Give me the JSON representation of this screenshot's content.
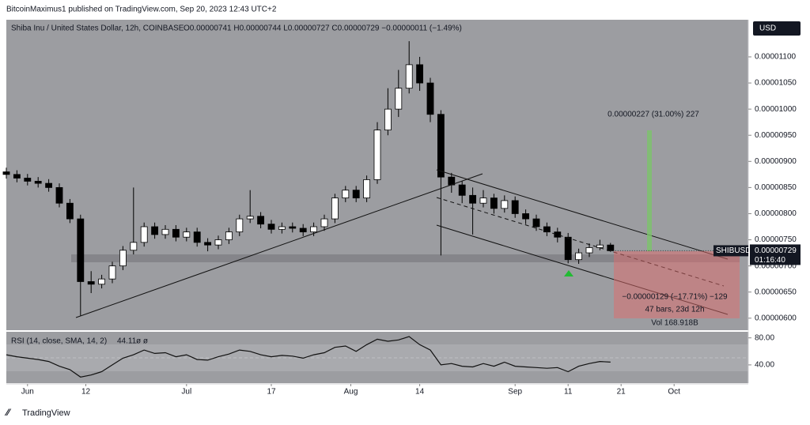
{
  "header": {
    "publisher": "BitcoinMaximus1 published on TradingView.com, Sep 20, 2023 12:43 UTC+2"
  },
  "chart_data": [
    {
      "type": "candlestick",
      "title": "Shiba Inu / United States Dollar, 12h, COINBASE",
      "ohlc_legend": "O0.00000741 H0.00000744 L0.00000727 C0.00000729 −0.00000011 (−1.49%)",
      "currency": "USD",
      "symbol": "SHIBUSD",
      "last_price": "0.00000729",
      "countdown": "01:16:40",
      "annotations": [
        "0.00000227 (31.00%) 227",
        "−0.00000129 (−17.71%) −129",
        "47 bars, 23d 12h",
        "Vol 168.918B"
      ],
      "up_color": "#ffffff",
      "down_color": "#000000",
      "xlim": [
        -4,
        136
      ],
      "xticks": [
        {
          "value": 0,
          "label": "Jun"
        },
        {
          "value": 11,
          "label": "12"
        },
        {
          "value": 30,
          "label": "Jul"
        },
        {
          "value": 46,
          "label": "17"
        },
        {
          "value": 61,
          "label": "Aug"
        },
        {
          "value": 74,
          "label": "14"
        },
        {
          "value": 92,
          "label": "Sep"
        },
        {
          "value": 102,
          "label": "11"
        },
        {
          "value": 112,
          "label": "21"
        },
        {
          "value": 122,
          "label": "Oct"
        }
      ],
      "ylim": [
        5.77e-06,
        1.171e-05
      ],
      "yticks": [
        {
          "value": 1.1e-05,
          "label": "0.00001100"
        },
        {
          "value": 1.05e-05,
          "label": "0.00001050"
        },
        {
          "value": 1e-05,
          "label": "0.00001000"
        },
        {
          "value": 9.5e-06,
          "label": "0.00000950"
        },
        {
          "value": 9e-06,
          "label": "0.00000900"
        },
        {
          "value": 8.5e-06,
          "label": "0.00000850"
        },
        {
          "value": 8e-06,
          "label": "0.00000800"
        },
        {
          "value": 7.5e-06,
          "label": "0.00000750"
        },
        {
          "value": 7e-06,
          "label": "0.00000700"
        },
        {
          "value": 6.5e-06,
          "label": "0.00000650"
        },
        {
          "value": 6e-06,
          "label": "0.00000600"
        }
      ],
      "x": [
        -4,
        -2,
        0,
        2,
        4,
        6,
        8,
        10,
        12,
        14,
        16,
        18,
        20,
        22,
        24,
        26,
        28,
        30,
        32,
        34,
        36,
        38,
        40,
        42,
        44,
        46,
        48,
        50,
        52,
        54,
        56,
        58,
        60,
        62,
        64,
        66,
        68,
        70,
        72,
        74,
        76,
        78,
        80,
        82,
        84,
        86,
        88,
        90,
        92,
        94,
        96,
        98,
        100,
        102,
        104,
        106,
        108,
        110
      ],
      "ohlc": [
        [
          8.8e-06,
          8.88e-06,
          8.67e-06,
          8.75e-06
        ],
        [
          8.75e-06,
          8.83e-06,
          8.6e-06,
          8.68e-06
        ],
        [
          8.68e-06,
          8.76e-06,
          8.54e-06,
          8.62e-06
        ],
        [
          8.62e-06,
          8.7e-06,
          8.5e-06,
          8.58e-06
        ],
        [
          8.58e-06,
          8.66e-06,
          8.42e-06,
          8.5e-06
        ],
        [
          8.5e-06,
          8.58e-06,
          8.12e-06,
          8.2e-06
        ],
        [
          8.2e-06,
          8.28e-06,
          7.82e-06,
          7.9e-06
        ],
        [
          7.9e-06,
          7.98e-06,
          6.05e-06,
          6.7e-06
        ],
        [
          6.7e-06,
          6.9e-06,
          6.48e-06,
          6.65e-06
        ],
        [
          6.65e-06,
          6.83e-06,
          6.57e-06,
          6.75e-06
        ],
        [
          6.75e-06,
          7.08e-06,
          6.67e-06,
          7e-06
        ],
        [
          7e-06,
          7.38e-06,
          6.92e-06,
          7.3e-06
        ],
        [
          7.3e-06,
          8.5e-06,
          7.22e-06,
          7.45e-06
        ],
        [
          7.45e-06,
          7.83e-06,
          7.37e-06,
          7.75e-06
        ],
        [
          7.75e-06,
          7.83e-06,
          7.52e-06,
          7.6e-06
        ],
        [
          7.6e-06,
          7.78e-06,
          7.52e-06,
          7.7e-06
        ],
        [
          7.7e-06,
          7.78e-06,
          7.47e-06,
          7.55e-06
        ],
        [
          7.55e-06,
          7.73e-06,
          7.47e-06,
          7.65e-06
        ],
        [
          7.65e-06,
          7.73e-06,
          7.37e-06,
          7.45e-06
        ],
        [
          7.45e-06,
          7.53e-06,
          7.28e-06,
          7.4e-06
        ],
        [
          7.4e-06,
          7.58e-06,
          7.32e-06,
          7.5e-06
        ],
        [
          7.5e-06,
          7.73e-06,
          7.42e-06,
          7.65e-06
        ],
        [
          7.65e-06,
          7.98e-06,
          7.57e-06,
          7.9e-06
        ],
        [
          7.9e-06,
          8.45e-06,
          7.82e-06,
          7.95e-06
        ],
        [
          7.95e-06,
          8.03e-06,
          7.72e-06,
          7.8e-06
        ],
        [
          7.8e-06,
          7.88e-06,
          7.62e-06,
          7.7e-06
        ],
        [
          7.7e-06,
          7.83e-06,
          7.62e-06,
          7.75e-06
        ],
        [
          7.75e-06,
          7.83e-06,
          7.64e-06,
          7.72e-06
        ],
        [
          7.72e-06,
          7.8e-06,
          7.57e-06,
          7.65e-06
        ],
        [
          7.65e-06,
          7.83e-06,
          7.57e-06,
          7.75e-06
        ],
        [
          7.75e-06,
          7.98e-06,
          7.67e-06,
          7.9e-06
        ],
        [
          7.9e-06,
          8.38e-06,
          7.82e-06,
          8.3e-06
        ],
        [
          8.3e-06,
          8.53e-06,
          8.22e-06,
          8.45e-06
        ],
        [
          8.45e-06,
          8.53e-06,
          8.22e-06,
          8.3e-06
        ],
        [
          8.3e-06,
          8.73e-06,
          8.22e-06,
          8.65e-06
        ],
        [
          8.65e-06,
          9.75e-06,
          8.57e-06,
          9.6e-06
        ],
        [
          9.6e-06,
          1.04e-05,
          9.5e-06,
          1e-05
        ],
        [
          1e-05,
          1.075e-05,
          9.85e-06,
          1.04e-05
        ],
        [
          1.04e-05,
          1.13e-05,
          1.03e-05,
          1.085e-05
        ],
        [
          1.085e-05,
          1.1e-05,
          1.035e-05,
          1.05e-05
        ],
        [
          1.05e-05,
          1.06e-05,
          9.75e-06,
          9.9e-06
        ],
        [
          9.9e-06,
          9.98e-06,
          7.2e-06,
          8.7e-06
        ],
        [
          8.7e-06,
          8.78e-06,
          8.4e-06,
          8.55e-06
        ],
        [
          8.55e-06,
          8.62e-06,
          8.2e-06,
          8.35e-06
        ],
        [
          8.35e-06,
          8.5e-06,
          7.6e-06,
          8.2e-06
        ],
        [
          8.2e-06,
          8.45e-06,
          8.12e-06,
          8.3e-06
        ],
        [
          8.3e-06,
          8.38e-06,
          8e-06,
          8.1e-06
        ],
        [
          8.1e-06,
          8.35e-06,
          8.02e-06,
          8.25e-06
        ],
        [
          8.25e-06,
          8.33e-06,
          7.92e-06,
          8e-06
        ],
        [
          8e-06,
          8.08e-06,
          7.8e-06,
          7.9e-06
        ],
        [
          7.9e-06,
          7.98e-06,
          7.67e-06,
          7.75e-06
        ],
        [
          7.75e-06,
          7.83e-06,
          7.57e-06,
          7.65e-06
        ],
        [
          7.65e-06,
          7.73e-06,
          7.45e-06,
          7.55e-06
        ],
        [
          7.55e-06,
          7.63e-06,
          7.05e-06,
          7.12e-06
        ],
        [
          7.12e-06,
          7.33e-06,
          7.04e-06,
          7.25e-06
        ],
        [
          7.25e-06,
          7.43e-06,
          7.17e-06,
          7.35e-06
        ],
        [
          7.35e-06,
          7.5e-06,
          7.3e-06,
          7.4e-06
        ],
        [
          7.4e-06,
          7.44e-06,
          7.27e-06,
          7.29e-06
        ]
      ]
    },
    {
      "type": "line",
      "title": "RSI (14, close, SMA, 14, 2)",
      "value_label": "44.11",
      "extra": "ø ø",
      "color": "#111111",
      "xlim": [
        -4,
        136
      ],
      "ylim": [
        13,
        89
      ],
      "yticks": [
        {
          "value": 80,
          "label": "80.00"
        },
        {
          "value": 40,
          "label": "40.00"
        }
      ],
      "x": [
        -4,
        -2,
        0,
        2,
        4,
        6,
        8,
        10,
        12,
        14,
        16,
        18,
        20,
        22,
        24,
        26,
        28,
        30,
        32,
        34,
        36,
        38,
        40,
        42,
        44,
        46,
        48,
        50,
        52,
        54,
        56,
        58,
        60,
        62,
        64,
        66,
        68,
        70,
        72,
        74,
        76,
        78,
        80,
        82,
        84,
        86,
        88,
        90,
        92,
        94,
        96,
        98,
        100,
        102,
        104,
        106,
        108,
        110
      ],
      "values": [
        55,
        52,
        50,
        48,
        45,
        38,
        33,
        22,
        25,
        30,
        40,
        50,
        55,
        62,
        57,
        58,
        52,
        55,
        48,
        47,
        52,
        56,
        62,
        60,
        55,
        52,
        54,
        53,
        50,
        55,
        58,
        66,
        68,
        60,
        70,
        78,
        75,
        77,
        82,
        70,
        62,
        40,
        42,
        38,
        37,
        42,
        38,
        44,
        38,
        37,
        36,
        35,
        36,
        30,
        38,
        42,
        45,
        44.11
      ]
    }
  ],
  "footer": {
    "logo": "TradingView"
  }
}
